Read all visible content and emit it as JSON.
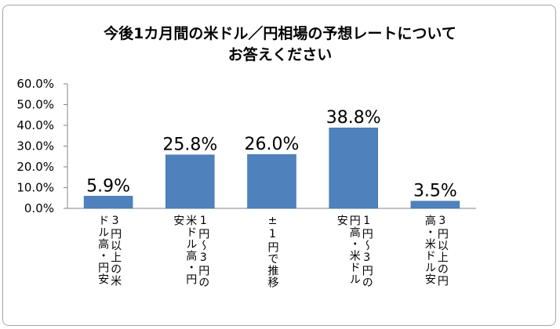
{
  "chart_data": {
    "type": "bar",
    "title_lines": [
      "今後1カ月間の米ドル／円相場の予想レートについて",
      "お答えください"
    ],
    "categories": [
      [
        "3円以上の米",
        "ドル高・円安"
      ],
      [
        "1円～3円の",
        "米ドル高・円",
        "安"
      ],
      [
        "±1円で推移"
      ],
      [
        "1円～3円の",
        "円高・米ドル",
        "安"
      ],
      [
        "3円以上の円",
        "高・米ドル安"
      ]
    ],
    "values": [
      5.9,
      25.8,
      26.0,
      38.8,
      3.5
    ],
    "data_labels": [
      "5.9%",
      "25.8%",
      "26.0%",
      "38.8%",
      "3.5%"
    ],
    "yticks": [
      "0.0%",
      "10.0%",
      "20.0%",
      "30.0%",
      "40.0%",
      "50.0%",
      "60.0%"
    ],
    "ylim": [
      0,
      60
    ],
    "xlabel": "",
    "ylabel": "",
    "grid": false,
    "legend": "none",
    "bar_color": "#4f81bd"
  }
}
